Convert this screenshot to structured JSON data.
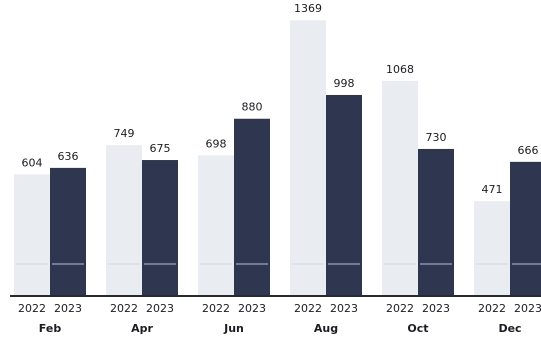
{
  "chart_data": {
    "type": "bar",
    "categories": [
      "Feb",
      "Apr",
      "Jun",
      "Aug",
      "Oct",
      "Dec"
    ],
    "sub_categories": [
      "2022",
      "2023"
    ],
    "series": [
      {
        "name": "2022",
        "values": [
          604,
          749,
          698,
          1369,
          1068,
          471
        ]
      },
      {
        "name": "2023",
        "values": [
          636,
          675,
          880,
          998,
          730,
          666
        ]
      }
    ],
    "title": "",
    "xlabel": "",
    "ylabel": "",
    "ylim": [
      0,
      1400
    ],
    "grid": false,
    "legend": "none",
    "colors": {
      "2022": "#e9edf2",
      "2023": "#2f3650",
      "baseline": "#2a2a2a",
      "text": "#1c1c22"
    }
  }
}
